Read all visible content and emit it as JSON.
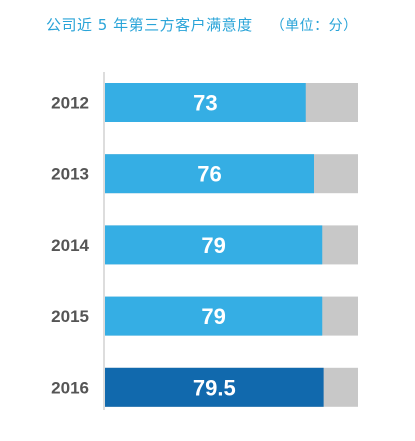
{
  "chart_data": {
    "type": "bar",
    "title": "公司近 5 年第三方客户满意度",
    "unit": "（单位：分）",
    "categories": [
      "2012",
      "2013",
      "2014",
      "2015",
      "2016"
    ],
    "values": [
      73,
      76,
      79,
      79,
      79.5
    ],
    "value_labels": [
      "73",
      "76",
      "79",
      "79",
      "79.5"
    ],
    "xlim": [
      0,
      92
    ],
    "orientation": "horizontal",
    "grid": false,
    "colors": {
      "bar": "#35aee4",
      "highlight_bar": "#1169ad",
      "remainder": "#c8c8c8",
      "title": "#2aa4d8"
    },
    "highlight_index": 4
  }
}
